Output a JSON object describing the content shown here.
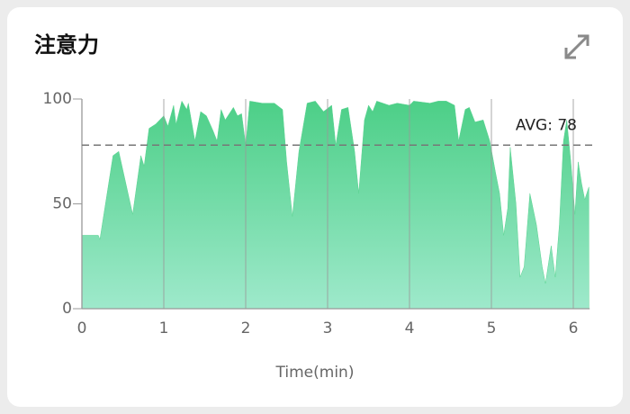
{
  "chart_data": {
    "type": "area",
    "title": "注意力",
    "x_label": "Time(min)",
    "x": [
      0,
      0.2,
      0.22,
      0.38,
      0.45,
      0.62,
      0.72,
      0.76,
      0.82,
      0.9,
      0.95,
      1.0,
      1.05,
      1.12,
      1.15,
      1.22,
      1.28,
      1.3,
      1.38,
      1.45,
      1.52,
      1.6,
      1.65,
      1.7,
      1.75,
      1.85,
      1.9,
      1.95,
      2.0,
      2.05,
      2.2,
      2.35,
      2.45,
      2.5,
      2.57,
      2.65,
      2.75,
      2.85,
      2.95,
      3.05,
      3.1,
      3.17,
      3.25,
      3.33,
      3.38,
      3.45,
      3.5,
      3.55,
      3.6,
      3.75,
      3.85,
      4.0,
      4.05,
      4.25,
      4.35,
      4.45,
      4.55,
      4.6,
      4.68,
      4.73,
      4.8,
      4.9,
      4.98,
      5.05,
      5.1,
      5.15,
      5.2,
      5.23,
      5.3,
      5.35,
      5.4,
      5.47,
      5.55,
      5.62,
      5.66,
      5.73,
      5.78,
      5.83,
      5.88,
      5.92,
      5.97,
      6.02,
      6.06,
      6.1,
      6.14,
      6.19
    ],
    "values": [
      35,
      35,
      33,
      73,
      75,
      45,
      73,
      68,
      86,
      88,
      90,
      92,
      87,
      97,
      88,
      99,
      95,
      98,
      80,
      94,
      92,
      85,
      80,
      95,
      90,
      96,
      92,
      93,
      78,
      99,
      98,
      98,
      95,
      70,
      44,
      75,
      98,
      99,
      94,
      97,
      78,
      95,
      96,
      75,
      55,
      90,
      97,
      94,
      99,
      97,
      98,
      97,
      99,
      98,
      99,
      99,
      97,
      80,
      95,
      96,
      89,
      90,
      80,
      65,
      55,
      35,
      48,
      77,
      50,
      15,
      20,
      55,
      40,
      20,
      12,
      30,
      15,
      40,
      80,
      90,
      70,
      45,
      70,
      60,
      52,
      58
    ],
    "color": "#5ad391",
    "xlim": [
      0,
      6.2
    ],
    "xticks": [
      0,
      1,
      2,
      3,
      4,
      5,
      6
    ],
    "ylim": [
      0,
      100
    ],
    "yticks": [
      0,
      50,
      100
    ],
    "avg": 78,
    "avg_label": "AVG: 78",
    "grid": true
  }
}
